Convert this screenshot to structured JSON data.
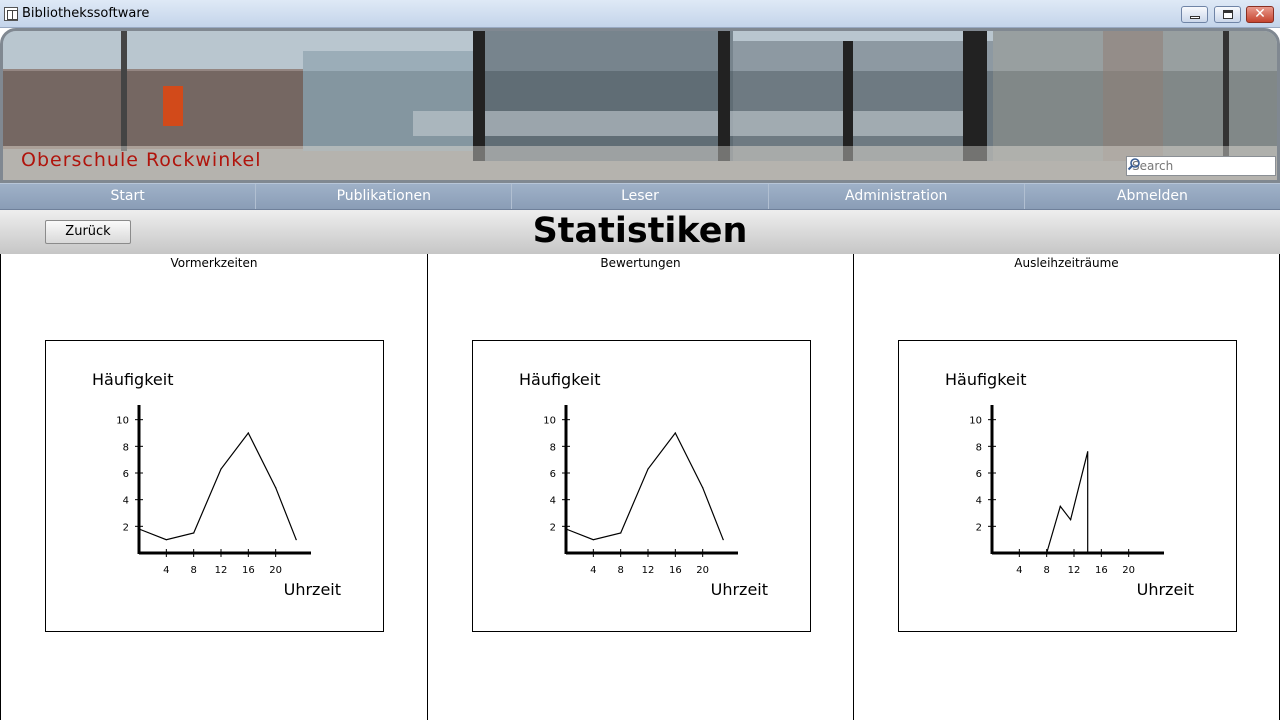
{
  "window": {
    "title": "Bibliothekssoftware"
  },
  "banner": {
    "school_name": "Oberschule Rockwinkel",
    "search_placeholder": "Search"
  },
  "nav": {
    "items": [
      "Start",
      "Publikationen",
      "Leser",
      "Administration",
      "Abmelden"
    ]
  },
  "header": {
    "back_label": "Zurück",
    "title": "Statistiken"
  },
  "chart_data": [
    {
      "type": "line",
      "title": "Vormerkzeiten",
      "ylabel": "Häufigkeit",
      "xlabel": "Uhrzeit",
      "x_ticks": [
        4,
        8,
        12,
        16,
        20
      ],
      "y_ticks": [
        2,
        4,
        6,
        8,
        10
      ],
      "xlim": [
        0,
        24
      ],
      "ylim": [
        0,
        10.5
      ],
      "x": [
        0,
        4,
        8,
        12,
        16,
        20,
        23
      ],
      "y": [
        1.8,
        1,
        1.5,
        6.3,
        9,
        4.9,
        1
      ]
    },
    {
      "type": "line",
      "title": "Bewertungen",
      "ylabel": "Häufigkeit",
      "xlabel": "Uhrzeit",
      "x_ticks": [
        4,
        8,
        12,
        16,
        20
      ],
      "y_ticks": [
        2,
        4,
        6,
        8,
        10
      ],
      "xlim": [
        0,
        24
      ],
      "ylim": [
        0,
        10.5
      ],
      "x": [
        0,
        4,
        8,
        12,
        16,
        20,
        23
      ],
      "y": [
        1.8,
        1,
        1.5,
        6.3,
        9,
        4.9,
        1
      ]
    },
    {
      "type": "line",
      "title": "Ausleihzeiträume",
      "ylabel": "Häufigkeit",
      "xlabel": "Uhrzeit",
      "x_ticks": [
        4,
        8,
        12,
        16,
        20
      ],
      "y_ticks": [
        2,
        4,
        6,
        8,
        10
      ],
      "xlim": [
        0,
        24
      ],
      "ylim": [
        0,
        10.5
      ],
      "x": [
        8,
        10,
        11.5,
        14,
        14
      ],
      "y": [
        0,
        3.5,
        2.5,
        7.6,
        0
      ]
    }
  ]
}
